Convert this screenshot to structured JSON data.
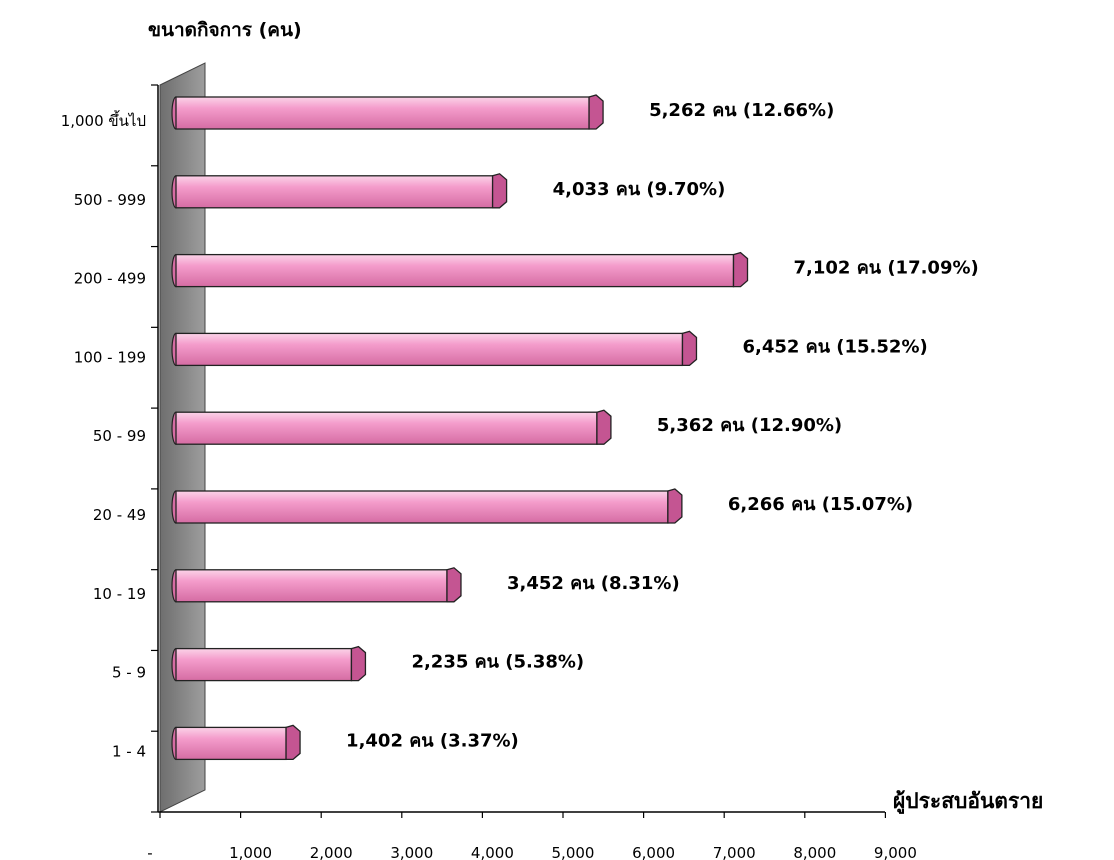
{
  "chart_data": {
    "type": "bar",
    "orientation": "horizontal",
    "style": "3d-cylinder",
    "ylabel": "ขนาดกิจการ (คน)",
    "xlabel": "ผู้ประสบอันตราย",
    "xlim": [
      0,
      9000
    ],
    "x_ticks": [
      "-",
      "1,000",
      "2,000",
      "3,000",
      "4,000",
      "5,000",
      "6,000",
      "7,000",
      "8,000",
      "9,000"
    ],
    "categories": [
      "1,000 ขึ้นไป",
      "500 - 999",
      "200 - 499",
      "100 - 199",
      "50 - 99",
      "20 - 49",
      "10 - 19",
      "5 - 9",
      "1 - 4"
    ],
    "values": [
      5262,
      4033,
      7102,
      6452,
      5362,
      6266,
      3452,
      2235,
      1402
    ],
    "data_labels": [
      "5,262 คน (12.66%)",
      "4,033 คน (9.70%)",
      "7,102 คน (17.09%)",
      "6,452 คน (15.52%)",
      "5,362 คน (12.90%)",
      "6,266 คน (15.07%)",
      "3,452 คน (8.31%)",
      "2,235 คน (5.38%)",
      "1,402 คน (3.37%)"
    ],
    "bar_color": "#f08cc0",
    "wall_color": "#8c8c8c",
    "grid": false,
    "legend": "none"
  }
}
